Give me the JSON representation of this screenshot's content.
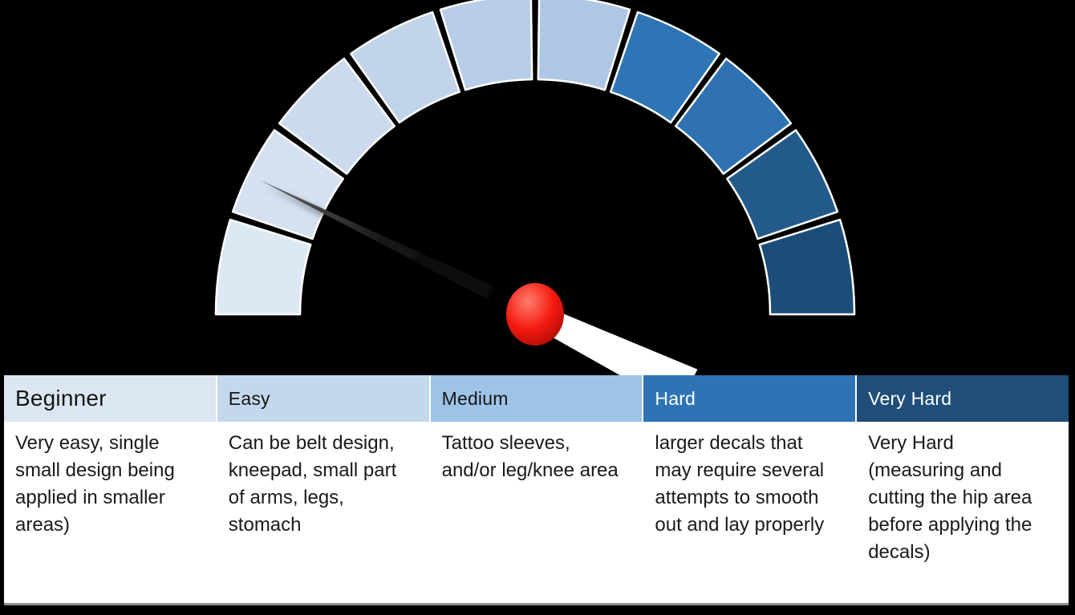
{
  "chart_data": [
    {
      "type": "gauge",
      "title": "Difficulty gauge (no text labels on dial)",
      "start_angle_deg": 180,
      "end_angle_deg": 0,
      "segment_count": 10,
      "segment_colors": [
        "#dde8f5",
        "#d5e1f1",
        "#ccdaee",
        "#c2d4ea",
        "#b8cde7",
        "#aec7e4",
        "#2e75b6",
        "#2d72b1",
        "#225a8c",
        "#1f4e79"
      ],
      "needle": {
        "angle_deg": 154,
        "fraction_of_scale": 0.145,
        "points_to": "segment 2 of 10 (Beginner/Easy region)",
        "color": "#111111",
        "tail_color": "#ffffff",
        "hub_color": "#ee1111"
      },
      "levels": [
        "Beginner",
        "Easy",
        "Medium",
        "Hard",
        "Very Hard"
      ],
      "legend_position": "table below gauge",
      "background": "#000000"
    },
    {
      "type": "table",
      "columns": [
        "Beginner",
        "Easy",
        "Medium",
        "Hard",
        "Very Hard"
      ],
      "rows": [
        [
          "Very easy, single small design being applied in smaller areas)",
          "Can be belt design, kneepad, small part of arms, legs, stomach",
          "Tattoo sleeves, and/or leg/knee area",
          "larger decals that may require several attempts to smooth out and lay properly",
          "Very Hard (measuring and cutting the hip area before applying the decals)"
        ]
      ]
    }
  ],
  "table": {
    "columns": [
      {
        "header": "Beginner",
        "header_bg": "#dce6f2",
        "header_text_color": "#161616",
        "body": "Very easy, single small design being applied in smaller areas)"
      },
      {
        "header": "Easy",
        "header_bg": "#c4d8ed",
        "header_text_color": "#161616",
        "body": "Can be belt design, kneepad, small part of arms, legs, stomach"
      },
      {
        "header": "Medium",
        "header_bg": "#9dc3e6",
        "header_text_color": "#161616",
        "body": "Tattoo sleeves, and/or leg/knee area"
      },
      {
        "header": "Hard",
        "header_bg": "#2e74b5",
        "header_text_color": "#ffffff",
        "body": "larger decals that may require several attempts to smooth out and lay properly"
      },
      {
        "header": "Very Hard",
        "header_bg": "#1f4e79",
        "header_text_color": "#ffffff",
        "body": "Very Hard (measuring and cutting the hip area before applying the decals)"
      }
    ]
  },
  "colors": {
    "background": "#000000",
    "table_body_bg": "#ffffff",
    "table_bottom_edge": "#8f8f8f",
    "segment_outline": "#ffffff"
  }
}
